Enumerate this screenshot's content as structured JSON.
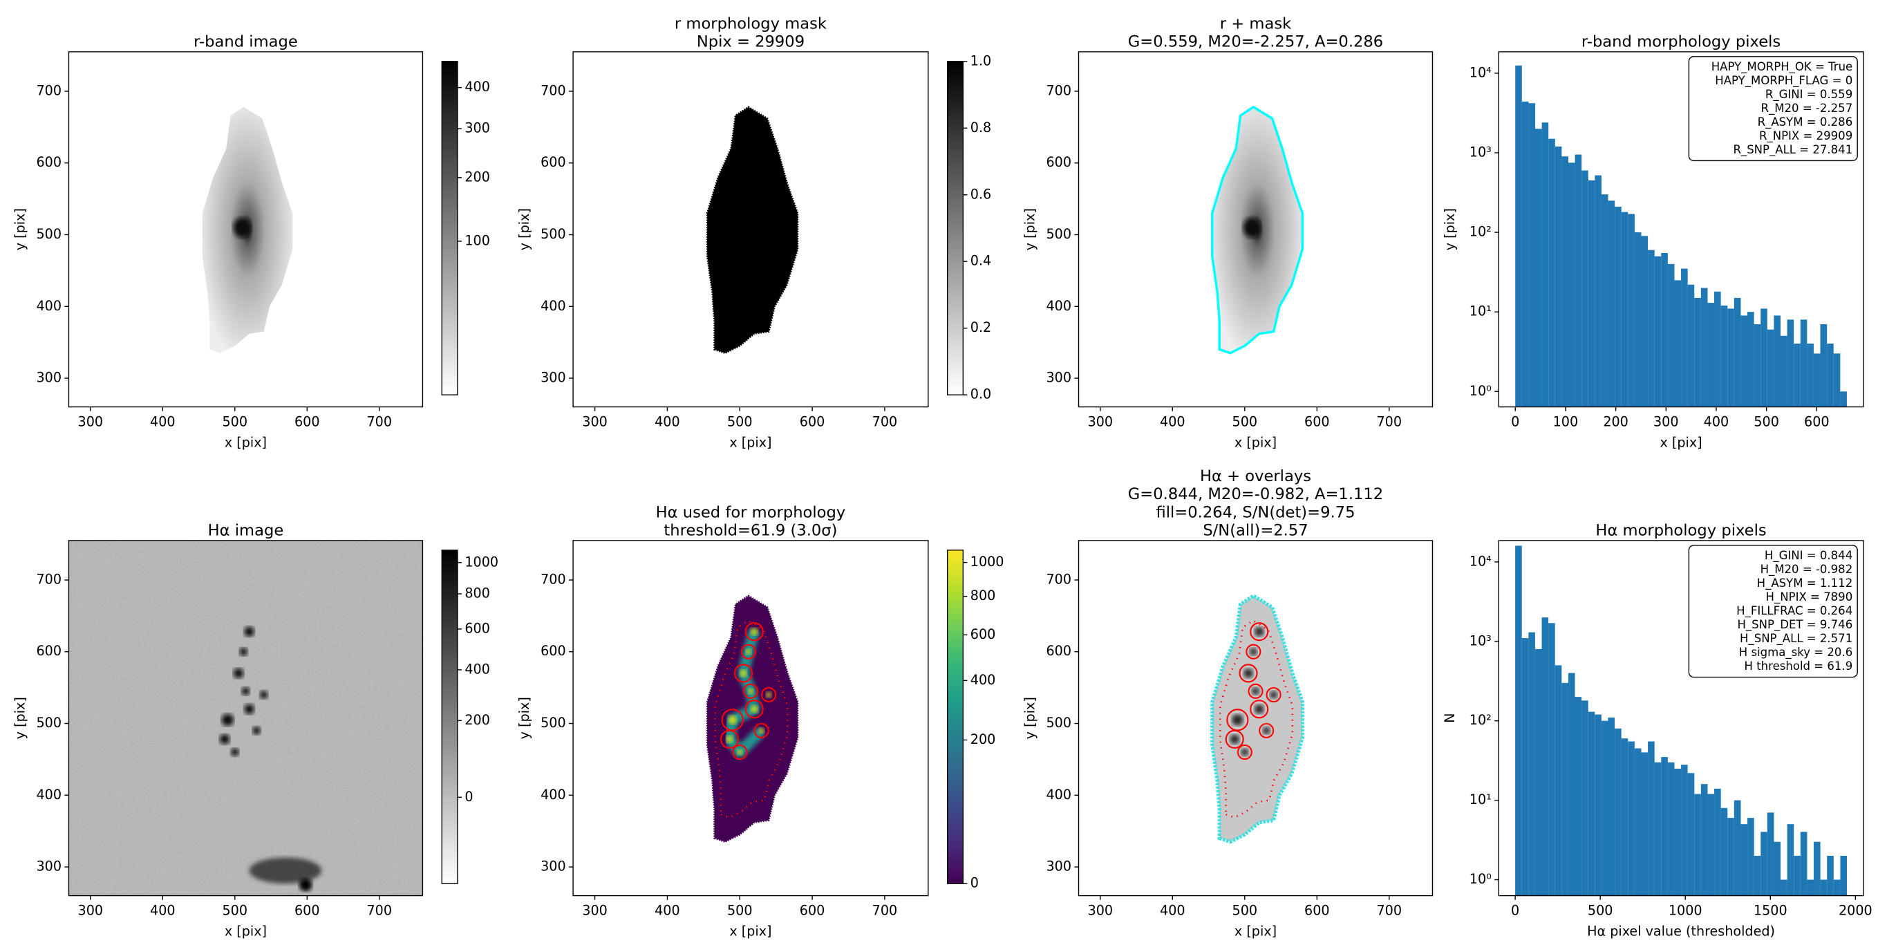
{
  "chart_data": [
    {
      "type": "image",
      "title": [
        "r-band image"
      ],
      "xlabel": "x [pix]",
      "ylabel": "y [pix]",
      "xlim": [
        270,
        760
      ],
      "ylim": [
        260,
        755
      ],
      "xticks": [
        300,
        400,
        500,
        600,
        700
      ],
      "yticks": [
        300,
        400,
        500,
        600,
        700
      ],
      "colorbar": {
        "cmap": "gray_r",
        "stretch": "sqrt",
        "clim": [
          0,
          471
        ],
        "ticks": [
          100,
          200,
          300,
          400
        ]
      }
    },
    {
      "type": "image",
      "title": [
        "r morphology mask",
        "Npix = 29909"
      ],
      "xlabel": "x [pix]",
      "ylabel": "y [pix]",
      "xlim": [
        270,
        760
      ],
      "ylim": [
        260,
        755
      ],
      "xticks": [
        300,
        400,
        500,
        600,
        700
      ],
      "yticks": [
        300,
        400,
        500,
        600,
        700
      ],
      "colorbar": {
        "cmap": "gray_r",
        "stretch": "linear",
        "clim": [
          0,
          1
        ],
        "ticks": [
          {
            "value": 0,
            "label": "0.0"
          },
          0.2,
          0.4,
          0.6,
          0.8,
          {
            "value": 1,
            "label": "1.0"
          }
        ]
      }
    },
    {
      "type": "image",
      "title": [
        "r + mask",
        "G=0.559, M20=-2.257, A=0.286"
      ],
      "xlabel": "x [pix]",
      "ylabel": "y [pix]",
      "xlim": [
        270,
        760
      ],
      "ylim": [
        260,
        755
      ],
      "xticks": [
        300,
        400,
        500,
        600,
        700
      ],
      "yticks": [
        300,
        400,
        500,
        600,
        700
      ]
    },
    {
      "type": "histogram",
      "title": [
        "r-band morphology pixels"
      ],
      "xlabel": "x [pix]",
      "ylabel": "y [pix]",
      "color": "#1f77b4",
      "log_y": true,
      "legend_corner": "upper right",
      "bins": [
        0,
        13.2,
        26.4,
        39.6,
        52.8,
        66,
        79.2,
        92.4,
        105.6,
        118.8,
        132,
        145.2,
        158.4,
        171.6,
        184.8,
        198,
        211.2,
        224.4,
        237.6,
        250.8,
        264,
        277.2,
        290.4,
        303.6,
        316.8,
        330,
        343.2,
        356.4,
        369.6,
        382.8,
        396,
        409.2,
        422.4,
        435.6,
        448.8,
        462,
        475.2,
        488.4,
        501.6,
        514.8,
        528,
        541.2,
        554.4,
        567.6,
        580.8,
        594,
        607.2,
        620.4,
        633.6,
        646.8,
        660
      ],
      "counts": [
        12500,
        4400,
        4200,
        2000,
        2400,
        1500,
        1200,
        900,
        750,
        950,
        600,
        450,
        520,
        300,
        250,
        210,
        180,
        170,
        100,
        90,
        60,
        50,
        55,
        40,
        25,
        35,
        22,
        15,
        20,
        13,
        18,
        12,
        11,
        15,
        9,
        10,
        7,
        11,
        6,
        9,
        5,
        8,
        4,
        8,
        4,
        3,
        7,
        4,
        3,
        1
      ],
      "xlim": [
        -33,
        693
      ],
      "ylim": [
        0.64,
        18600
      ],
      "xticks": [
        0,
        100,
        200,
        300,
        400,
        500,
        600
      ],
      "yticks": [
        {
          "value": 1,
          "label": "10⁰"
        },
        {
          "value": 10,
          "label": "10¹"
        },
        {
          "value": 100,
          "label": "10²"
        },
        {
          "value": 1000,
          "label": "10³"
        },
        {
          "value": 10000,
          "label": "10⁴"
        }
      ],
      "annotation_lines": [
        "HAPY_MORPH_OK = True",
        "HAPY_MORPH_FLAG = 0",
        "R_GINI = 0.559",
        "R_M20 = -2.257",
        "R_ASYM = 0.286",
        "R_NPIX = 29909",
        "R_SNP_ALL = 27.841"
      ]
    },
    {
      "type": "image",
      "title": [
        "Hα image"
      ],
      "xlabel": "x [pix]",
      "ylabel": "y [pix]",
      "xlim": [
        270,
        760
      ],
      "ylim": [
        260,
        755
      ],
      "xticks": [
        300,
        400,
        500,
        600,
        700
      ],
      "yticks": [
        300,
        400,
        500,
        600,
        700
      ],
      "colorbar": {
        "cmap": "gray_r",
        "stretch": "sqrt",
        "clim": [
          -78,
          1085
        ],
        "ticks": [
          0,
          200,
          400,
          600,
          800,
          1000
        ]
      }
    },
    {
      "type": "image",
      "title": [
        "Hα used for morphology",
        "threshold=61.9 (3.0σ)"
      ],
      "xlabel": "x [pix]",
      "ylabel": "y [pix]",
      "xlim": [
        270,
        760
      ],
      "ylim": [
        260,
        755
      ],
      "xticks": [
        300,
        400,
        500,
        600,
        700
      ],
      "yticks": [
        300,
        400,
        500,
        600,
        700
      ],
      "colorbar": {
        "cmap": "viridis",
        "stretch": "sqrt",
        "clim": [
          0,
          1078
        ],
        "ticks": [
          0,
          200,
          400,
          600,
          800,
          1000
        ]
      }
    },
    {
      "type": "image",
      "title": [
        "Hα + overlays",
        "G=0.844, M20=-0.982, A=1.112",
        "fill=0.264, S/N(det)=9.75",
        "S/N(all)=2.57"
      ],
      "xlabel": "x [pix]",
      "ylabel": "y [pix]",
      "xlim": [
        270,
        760
      ],
      "ylim": [
        260,
        755
      ],
      "xticks": [
        300,
        400,
        500,
        600,
        700
      ],
      "yticks": [
        300,
        400,
        500,
        600,
        700
      ]
    },
    {
      "type": "histogram",
      "title": [
        "Hα morphology pixels"
      ],
      "xlabel": "Hα pixel value (thresholded)",
      "ylabel": "N",
      "color": "#1f77b4",
      "log_y": true,
      "legend_corner": "upper right",
      "bins": [
        0,
        39,
        78,
        117,
        156,
        195,
        234,
        273,
        312,
        351,
        390,
        429,
        468,
        507,
        546,
        585,
        624,
        663,
        702,
        741,
        780,
        819,
        858,
        897,
        936,
        975,
        1014,
        1053,
        1092,
        1131,
        1170,
        1209,
        1248,
        1287,
        1326,
        1365,
        1404,
        1443,
        1482,
        1521,
        1560,
        1599,
        1638,
        1677,
        1716,
        1755,
        1794,
        1833,
        1872,
        1911,
        1950
      ],
      "counts": [
        16000,
        1100,
        1300,
        800,
        2000,
        1700,
        500,
        300,
        400,
        200,
        180,
        130,
        120,
        100,
        110,
        80,
        60,
        55,
        45,
        40,
        55,
        30,
        35,
        30,
        25,
        28,
        22,
        12,
        16,
        12,
        14,
        8,
        6,
        10,
        5,
        6,
        2,
        4,
        7,
        3,
        1,
        5,
        2,
        4,
        1,
        3,
        1,
        2,
        1,
        2
      ],
      "xlim": [
        -97,
        2047
      ],
      "ylim": [
        0.63,
        18600
      ],
      "xticks": [
        0,
        500,
        1000,
        1500,
        2000
      ],
      "yticks": [
        {
          "value": 1,
          "label": "10⁰"
        },
        {
          "value": 10,
          "label": "10¹"
        },
        {
          "value": 100,
          "label": "10²"
        },
        {
          "value": 1000,
          "label": "10³"
        },
        {
          "value": 10000,
          "label": "10⁴"
        }
      ],
      "annotation_lines": [
        "H_GINI = 0.844",
        "H_M20 = -0.982",
        "H_ASYM = 1.112",
        "H_NPIX = 7890",
        "H_FILLFRAC = 0.264",
        "H_SNP_DET = 9.746",
        "H_SNP_ALL = 2.571",
        "H sigma_sky = 20.6",
        "H threshold = 61.9"
      ]
    }
  ]
}
